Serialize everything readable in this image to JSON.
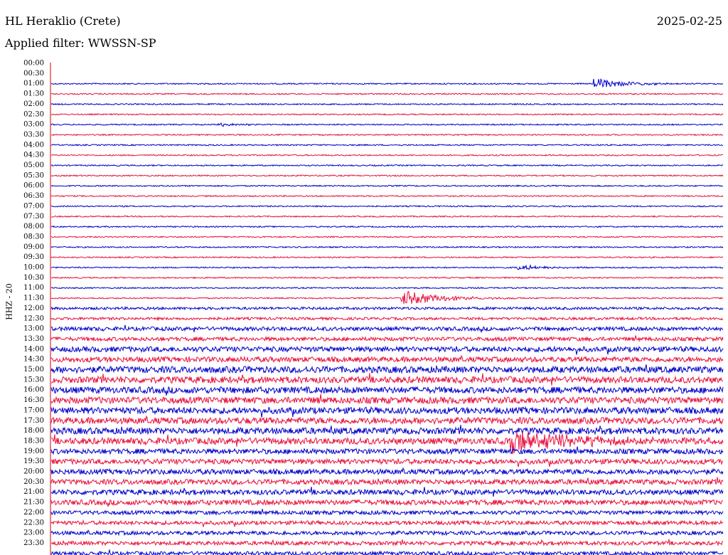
{
  "header": {
    "station": "HL Heraklio (Crete)",
    "date": "2025-02-25",
    "filter": "Applied filter: WWSSN-SP",
    "channel": "HHZ - 20"
  },
  "colors": {
    "even_trace": "#0000cc",
    "odd_trace": "#e8103c",
    "axis": "#cc0000"
  },
  "chart_data": {
    "type": "line",
    "title": "HL Heraklio (Crete)",
    "ylabel": "HHZ - 20",
    "y_tick_labels": [
      "00:00",
      "00:30",
      "01:00",
      "01:30",
      "02:00",
      "02:30",
      "03:00",
      "03:30",
      "04:00",
      "04:30",
      "05:00",
      "05:30",
      "06:00",
      "06:30",
      "07:00",
      "07:30",
      "08:00",
      "08:30",
      "09:00",
      "09:30",
      "10:00",
      "10:30",
      "11:00",
      "11:30",
      "12:00",
      "12:30",
      "13:00",
      "13:30",
      "14:00",
      "14:30",
      "15:00",
      "15:30",
      "16:00",
      "16:30",
      "17:00",
      "17:30",
      "18:00",
      "18:30",
      "19:00",
      "19:30",
      "20:00",
      "20:30",
      "21:00",
      "21:30",
      "22:00",
      "22:30",
      "23:00",
      "23:30"
    ],
    "traces_start": "01:00",
    "trace_count": 47,
    "noise_level_by_hour": [
      1,
      1,
      1,
      1,
      1,
      1,
      1,
      1,
      1,
      1,
      1,
      1,
      2,
      3,
      4,
      5,
      5,
      5,
      5,
      4,
      4,
      4,
      3,
      3
    ],
    "events": [
      {
        "label": "01:00",
        "minute_offset": 24.2,
        "amplitude": 7,
        "duration_min": 1.5
      },
      {
        "label": "03:00",
        "minute_offset": 7.4,
        "amplitude": 2.5,
        "duration_min": 1.0
      },
      {
        "label": "10:00",
        "minute_offset": 20.8,
        "amplitude": 4,
        "duration_min": 1.2
      },
      {
        "label": "11:30",
        "minute_offset": 15.6,
        "amplitude": 11,
        "duration_min": 1.8
      },
      {
        "label": "18:30",
        "minute_offset": 20.5,
        "amplitude": 16,
        "duration_min": 3.0
      }
    ]
  }
}
